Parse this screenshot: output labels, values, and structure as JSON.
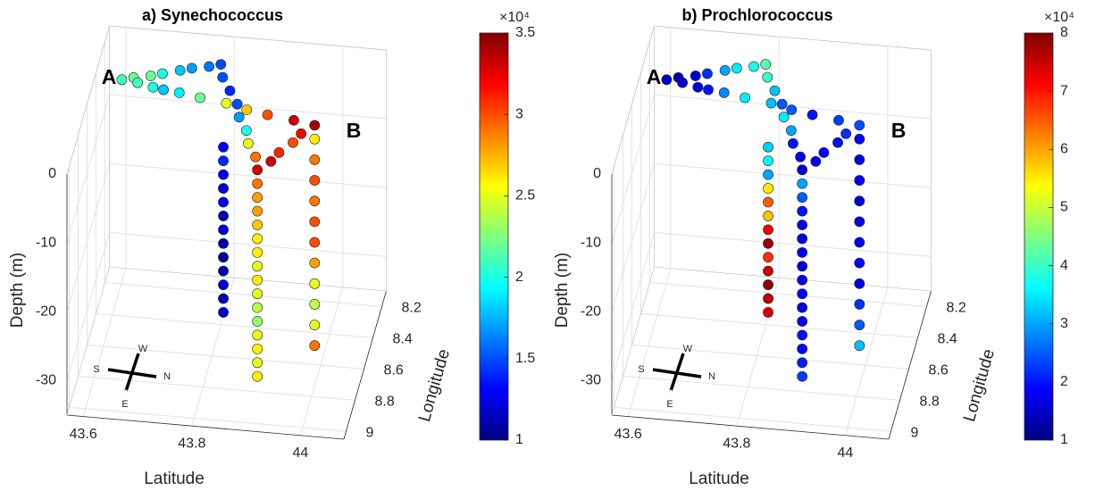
{
  "chart_data": [
    {
      "type": "scatter3d",
      "title": "a) Synechococcus",
      "xlabel": "Latitude",
      "ylabel": "Longitude",
      "zlabel": "Depth (m)",
      "xlim": [
        43.57,
        44.08
      ],
      "xticks": [
        43.6,
        43.8,
        44
      ],
      "ylim": [
        8.1,
        9.05
      ],
      "yticks": [
        8.2,
        8.4,
        8.6,
        8.8,
        9
      ],
      "zlim": [
        -35,
        0
      ],
      "zticks": [
        -30,
        -20,
        -10,
        0
      ],
      "clim": [
        1,
        3.5
      ],
      "cticks": [
        1,
        1.5,
        2,
        2.5,
        3,
        3.5
      ],
      "colorbar_exponent": "×10⁴",
      "colormap": "jet",
      "grid": true,
      "annotations": [
        "A",
        "B"
      ],
      "compass": [
        "W",
        "S",
        "N",
        "E"
      ],
      "track": {
        "lat": [
          43.62,
          43.64,
          43.67,
          43.69,
          43.72,
          43.74,
          43.77,
          43.79,
          43.8,
          43.82,
          43.84,
          43.85,
          43.87,
          43.88,
          43.9,
          43.91,
          43.93,
          43.94,
          43.96,
          43.97,
          43.99,
          43.95,
          43.9,
          43.86,
          43.82,
          43.77,
          43.73,
          43.7,
          43.68,
          43.65
        ],
        "lon": [
          8.43,
          8.41,
          8.39,
          8.37,
          8.34,
          8.32,
          8.3,
          8.28,
          8.36,
          8.44,
          8.52,
          8.6,
          8.68,
          8.76,
          8.84,
          8.92,
          8.86,
          8.8,
          8.73,
          8.67,
          8.61,
          8.59,
          8.57,
          8.55,
          8.52,
          8.5,
          8.48,
          8.47,
          8.46,
          8.44
        ],
        "depth": [
          0,
          0,
          0,
          0,
          0,
          0,
          0,
          0,
          0,
          0,
          0,
          0,
          0,
          0,
          0,
          0,
          0,
          0,
          0,
          0,
          0,
          0,
          0,
          0,
          0,
          0,
          0,
          0,
          0,
          0
        ],
        "values": [
          2.1,
          2.2,
          2.2,
          2.0,
          1.8,
          1.7,
          1.6,
          1.5,
          1.5,
          1.4,
          1.5,
          1.7,
          2.0,
          2.5,
          2.9,
          3.3,
          3.3,
          3.1,
          3.0,
          3.2,
          3.4,
          3.3,
          3.0,
          2.7,
          2.5,
          2.2,
          1.9,
          1.8,
          2.0,
          2.1
        ]
      },
      "profiles": [
        {
          "lat": 43.83,
          "lon": 8.71,
          "depth": [
            -2,
            -4,
            -6,
            -8,
            -10,
            -12,
            -14,
            -16,
            -18,
            -20,
            -22,
            -24,
            -26
          ],
          "values": [
            1.3,
            1.4,
            1.3,
            1.2,
            1.3,
            1.1,
            1.2,
            1.1,
            1.0,
            1.1,
            1.2,
            1.1,
            1.2
          ]
        },
        {
          "lat": 43.91,
          "lon": 8.92,
          "depth": [
            -2,
            -4,
            -6,
            -8,
            -10,
            -12,
            -14,
            -16,
            -18,
            -20,
            -22,
            -24,
            -26,
            -28,
            -30
          ],
          "values": [
            2.9,
            2.8,
            2.8,
            2.7,
            2.6,
            2.6,
            2.5,
            2.6,
            2.5,
            2.4,
            2.3,
            2.5,
            2.6,
            2.5,
            2.6
          ]
        },
        {
          "lat": 43.99,
          "lon": 8.61,
          "depth": [
            -2,
            -5,
            -8,
            -11,
            -14,
            -17,
            -20,
            -23,
            -26,
            -29,
            -32
          ],
          "values": [
            2.6,
            2.9,
            3.0,
            2.9,
            3.0,
            3.0,
            2.8,
            2.5,
            2.4,
            2.5,
            2.9
          ]
        }
      ]
    },
    {
      "type": "scatter3d",
      "title": "b) Prochlorococcus",
      "xlabel": "Latitude",
      "ylabel": "Longitude",
      "zlabel": "Depth (m)",
      "xlim": [
        43.57,
        44.08
      ],
      "xticks": [
        43.6,
        43.8,
        44
      ],
      "ylim": [
        8.1,
        9.05
      ],
      "yticks": [
        8.2,
        8.4,
        8.6,
        8.8,
        9
      ],
      "zlim": [
        -35,
        0
      ],
      "zticks": [
        -30,
        -20,
        -10,
        0
      ],
      "clim": [
        1,
        8
      ],
      "cticks": [
        1,
        2,
        3,
        4,
        5,
        6,
        7,
        8
      ],
      "colorbar_exponent": "×10⁴",
      "colormap": "jet",
      "grid": true,
      "annotations": [
        "A",
        "B"
      ],
      "compass": [
        "W",
        "S",
        "N",
        "E"
      ],
      "track": {
        "lat": [
          43.62,
          43.64,
          43.67,
          43.69,
          43.72,
          43.74,
          43.77,
          43.79,
          43.8,
          43.82,
          43.84,
          43.85,
          43.87,
          43.88,
          43.9,
          43.91,
          43.93,
          43.94,
          43.96,
          43.97,
          43.99,
          43.95,
          43.9,
          43.86,
          43.82,
          43.77,
          43.73,
          43.7,
          43.68,
          43.65
        ],
        "lon": [
          8.43,
          8.41,
          8.39,
          8.37,
          8.34,
          8.32,
          8.3,
          8.28,
          8.36,
          8.44,
          8.52,
          8.6,
          8.68,
          8.76,
          8.84,
          8.92,
          8.86,
          8.8,
          8.73,
          8.67,
          8.61,
          8.59,
          8.57,
          8.55,
          8.52,
          8.5,
          8.48,
          8.47,
          8.46,
          8.44
        ],
        "depth": [
          0,
          0,
          0,
          0,
          0,
          0,
          0,
          0,
          0,
          0,
          0,
          0,
          0,
          0,
          0,
          0,
          0,
          0,
          0,
          0,
          0,
          0,
          0,
          0,
          0,
          0,
          0,
          0,
          0,
          0
        ],
        "values": [
          1.5,
          1.4,
          1.6,
          2.2,
          3.0,
          3.5,
          3.8,
          4.2,
          4.0,
          3.2,
          2.5,
          3.5,
          3.0,
          2.0,
          1.8,
          1.6,
          1.8,
          1.9,
          2.0,
          2.2,
          2.4,
          2.3,
          2.0,
          2.5,
          3.2,
          3.5,
          2.8,
          2.0,
          1.6,
          1.5
        ]
      },
      "profiles": [
        {
          "lat": 43.83,
          "lon": 8.71,
          "depth": [
            -2,
            -4,
            -6,
            -8,
            -10,
            -12,
            -14,
            -16,
            -18,
            -20,
            -22,
            -24,
            -26
          ],
          "values": [
            3.3,
            3.6,
            3.0,
            5.5,
            6.5,
            5.8,
            7.2,
            7.8,
            6.8,
            7.5,
            7.9,
            7.6,
            7.4
          ]
        },
        {
          "lat": 43.91,
          "lon": 8.92,
          "depth": [
            -2,
            -4,
            -6,
            -8,
            -10,
            -12,
            -14,
            -16,
            -18,
            -20,
            -22,
            -24,
            -26,
            -28,
            -30
          ],
          "values": [
            3.0,
            2.5,
            2.0,
            1.8,
            1.7,
            1.8,
            1.6,
            1.7,
            1.9,
            1.7,
            1.8,
            2.0,
            1.9,
            2.1,
            2.3
          ]
        },
        {
          "lat": 43.99,
          "lon": 8.61,
          "depth": [
            -2,
            -5,
            -8,
            -11,
            -14,
            -17,
            -20,
            -23,
            -26,
            -29,
            -32
          ],
          "values": [
            1.9,
            1.7,
            1.8,
            1.6,
            1.7,
            1.8,
            1.9,
            1.7,
            2.2,
            2.5,
            3.2
          ]
        }
      ]
    }
  ]
}
